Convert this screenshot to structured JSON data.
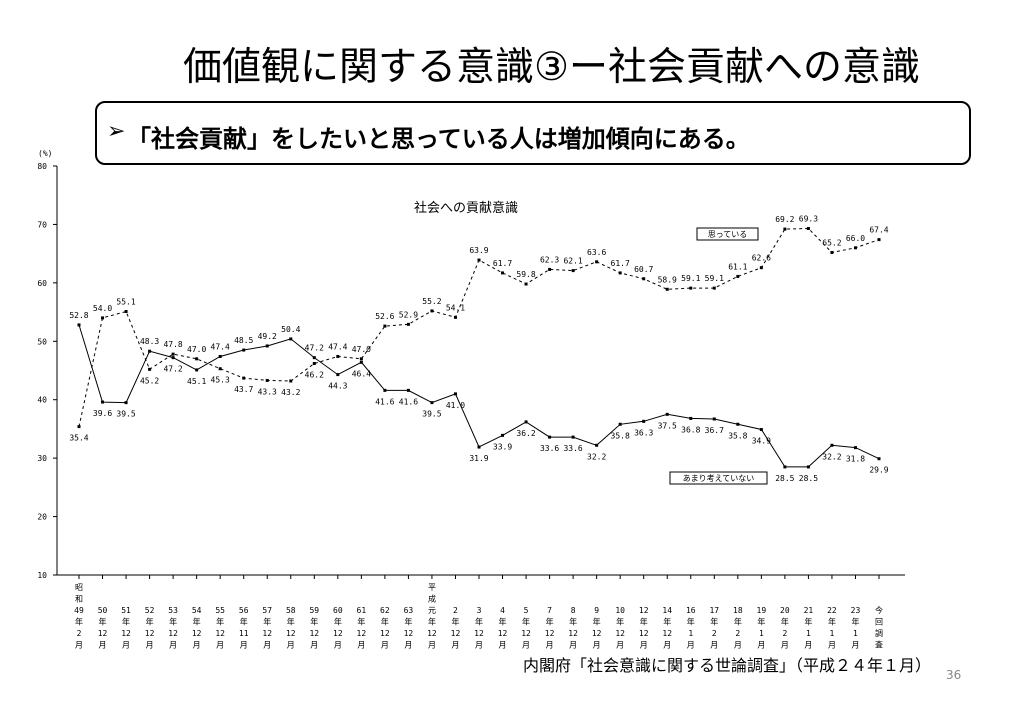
{
  "slide": {
    "title": "価値観に関する意識③ー社会貢献への意識",
    "callout_bullet": "➢",
    "callout": "「社会貢献」をしたいと思っている人は増加傾向にある。",
    "source": "内閣府「社会意識に関する世論調査」（平成２４年１月）",
    "page_number": "36"
  },
  "chart_data": {
    "type": "line",
    "title": "社会への貢献意識",
    "yunit": "(%)",
    "ylim": [
      10,
      80
    ],
    "yticks": [
      10,
      20,
      30,
      40,
      50,
      60,
      70,
      80
    ],
    "categories": [
      [
        "昭",
        "和",
        "49",
        "年",
        "2",
        "月"
      ],
      [
        "50",
        "年",
        "12",
        "月"
      ],
      [
        "51",
        "年",
        "12",
        "月"
      ],
      [
        "52",
        "年",
        "12",
        "月"
      ],
      [
        "53",
        "年",
        "12",
        "月"
      ],
      [
        "54",
        "年",
        "12",
        "月"
      ],
      [
        "55",
        "年",
        "12",
        "月"
      ],
      [
        "56",
        "年",
        "11",
        "月"
      ],
      [
        "57",
        "年",
        "12",
        "月"
      ],
      [
        "58",
        "年",
        "12",
        "月"
      ],
      [
        "59",
        "年",
        "12",
        "月"
      ],
      [
        "60",
        "年",
        "12",
        "月"
      ],
      [
        "61",
        "年",
        "12",
        "月"
      ],
      [
        "62",
        "年",
        "12",
        "月"
      ],
      [
        "63",
        "年",
        "12",
        "月"
      ],
      [
        "平",
        "成",
        "元",
        "年",
        "12",
        "月"
      ],
      [
        "2",
        "年",
        "12",
        "月"
      ],
      [
        "3",
        "年",
        "12",
        "月"
      ],
      [
        "4",
        "年",
        "12",
        "月"
      ],
      [
        "5",
        "年",
        "12",
        "月"
      ],
      [
        "7",
        "年",
        "12",
        "月"
      ],
      [
        "8",
        "年",
        "12",
        "月"
      ],
      [
        "9",
        "年",
        "12",
        "月"
      ],
      [
        "10",
        "年",
        "12",
        "月"
      ],
      [
        "12",
        "年",
        "12",
        "月"
      ],
      [
        "14",
        "年",
        "12",
        "月"
      ],
      [
        "16",
        "年",
        "1",
        "月"
      ],
      [
        "17",
        "年",
        "2",
        "月"
      ],
      [
        "18",
        "年",
        "2",
        "月"
      ],
      [
        "19",
        "年",
        "1",
        "月"
      ],
      [
        "20",
        "年",
        "2",
        "月"
      ],
      [
        "21",
        "年",
        "1",
        "月"
      ],
      [
        "22",
        "年",
        "1",
        "月"
      ],
      [
        "23",
        "年",
        "1",
        "月"
      ],
      [
        "今",
        "回",
        "調",
        "査"
      ]
    ],
    "series": [
      {
        "name": "思っている",
        "style": "dashed",
        "color": "#000000",
        "values": [
          35.4,
          54.0,
          55.1,
          45.2,
          47.8,
          47.0,
          45.3,
          43.7,
          43.3,
          43.2,
          46.2,
          47.4,
          47.0,
          52.6,
          52.9,
          55.2,
          54.1,
          63.9,
          61.7,
          59.8,
          62.3,
          62.1,
          63.6,
          61.7,
          60.7,
          58.9,
          59.1,
          59.1,
          61.1,
          62.6,
          69.2,
          69.3,
          65.2,
          66.0,
          67.4
        ]
      },
      {
        "name": "あまり考えていない",
        "style": "solid",
        "color": "#000000",
        "values": [
          52.8,
          39.6,
          39.5,
          48.3,
          47.2,
          45.1,
          47.4,
          48.5,
          49.2,
          50.4,
          47.2,
          44.3,
          46.4,
          41.6,
          41.6,
          39.5,
          41.0,
          31.9,
          33.9,
          36.2,
          33.6,
          33.6,
          32.2,
          35.8,
          36.3,
          37.5,
          36.8,
          36.7,
          35.8,
          34.9,
          28.5,
          28.5,
          32.2,
          31.8,
          29.9
        ]
      }
    ]
  }
}
